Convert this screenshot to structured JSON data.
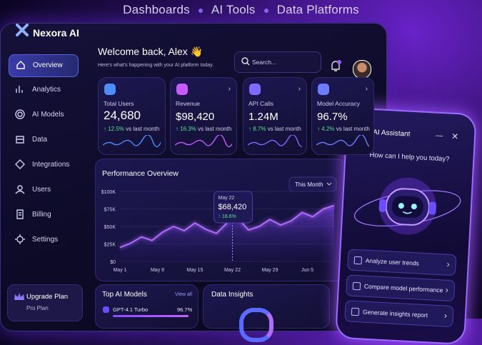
{
  "banner": [
    "Dashboards",
    "AI Tools",
    "Data Platforms"
  ],
  "sidebar": {
    "brand": "Nexora AI",
    "nav": [
      "Overview",
      "Analytics",
      "AI Models",
      "Data",
      "Integrations",
      "Users",
      "Billing",
      "Settings"
    ],
    "upgrade": {
      "title": "Upgrade Plan",
      "plan": "Pro Plan"
    }
  },
  "header": {
    "title": "Welcome back, Alex 👋",
    "subtitle": "Here's what's happening with your AI platform today.",
    "search": "Search..."
  },
  "stats": [
    {
      "label": "Total Users",
      "value": "24,680",
      "change": "↑ 12.5%",
      "note": "vs last month"
    },
    {
      "label": "Revenue",
      "value": "$98,420",
      "change": "↑ 16.3%",
      "note": "vs last month"
    },
    {
      "label": "API Calls",
      "value": "1.24M",
      "change": "↑ 8.7%",
      "note": "vs last month"
    },
    {
      "label": "Model Accuracy",
      "value": "96.7%",
      "change": "↑ 4.2%",
      "note": "vs last month"
    }
  ],
  "performance": {
    "type": "line",
    "title": "Performance Overview",
    "range": "This Month",
    "x": [
      0,
      2,
      4,
      6,
      8,
      10,
      12,
      14,
      16,
      18,
      20,
      21,
      22,
      24,
      26,
      28,
      30,
      32,
      34,
      36,
      38,
      40
    ],
    "values": [
      20000,
      26000,
      35000,
      30000,
      42000,
      50000,
      44000,
      55000,
      46000,
      40000,
      55000,
      68420,
      62000,
      45000,
      50000,
      60000,
      52000,
      58000,
      70000,
      64000,
      75000,
      80000
    ],
    "color": "#b06bff",
    "xlim": [
      0,
      40
    ],
    "ylim": [
      0,
      100000
    ],
    "yticks": [
      {
        "value": 0,
        "label": "$0"
      },
      {
        "value": 25000,
        "label": "$25K"
      },
      {
        "value": 50000,
        "label": "$50K"
      },
      {
        "value": 75000,
        "label": "$75K"
      },
      {
        "value": 100000,
        "label": "$100K"
      }
    ],
    "xticks": [
      {
        "value": 0,
        "label": "May 1"
      },
      {
        "value": 7,
        "label": "May 8"
      },
      {
        "value": 14,
        "label": "May 15"
      },
      {
        "value": 21,
        "label": "May 22"
      },
      {
        "value": 28,
        "label": "May 29"
      },
      {
        "value": 35,
        "label": "Jun 5"
      }
    ],
    "grid": true,
    "tooltip": {
      "date": "May 22",
      "value": "$68,420",
      "change": "↑ 18.6%"
    }
  },
  "models": {
    "title": "Top AI Models",
    "link": "View all",
    "rows": [
      {
        "name": "GPT-4.1 Turbo",
        "score": "96.7%"
      }
    ]
  },
  "insights": {
    "title": "Data Insights"
  },
  "assistant": {
    "title": "AI Assistant",
    "prompt": "How can I help you today?",
    "actions": [
      "Analyze user trends",
      "Compare model performance",
      "Generate insights report"
    ]
  }
}
